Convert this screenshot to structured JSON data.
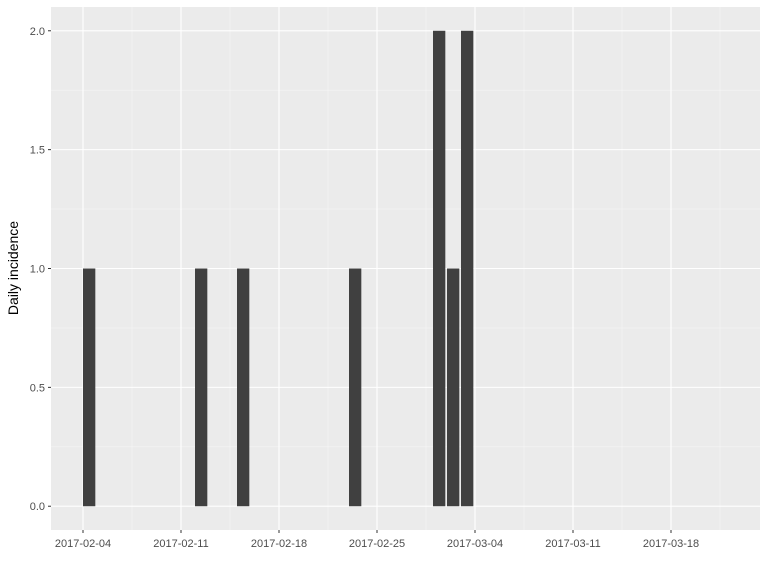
{
  "chart_data": {
    "type": "bar",
    "y_label": "Daily incidence",
    "x": [
      "2017-02-04",
      "2017-02-12",
      "2017-02-15",
      "2017-02-23",
      "2017-03-01",
      "2017-03-02",
      "2017-03-03"
    ],
    "values": [
      1,
      1,
      1,
      1,
      2,
      1,
      2
    ],
    "color": "#404040",
    "xlim": [
      "2017-02-02",
      "2017-03-24"
    ],
    "xticks": [
      "2017-02-04",
      "2017-02-11",
      "2017-02-18",
      "2017-02-25",
      "2017-03-04",
      "2017-03-11",
      "2017-03-18"
    ],
    "ylim": [
      -0.1,
      2.1
    ],
    "yticks": [
      {
        "value": 0,
        "label": "0.0"
      },
      {
        "value": 0.5,
        "label": "0.5"
      },
      {
        "value": 1,
        "label": "1.0"
      },
      {
        "value": 1.5,
        "label": "1.5"
      },
      {
        "value": 2,
        "label": "2.0"
      }
    ],
    "grid": true
  }
}
